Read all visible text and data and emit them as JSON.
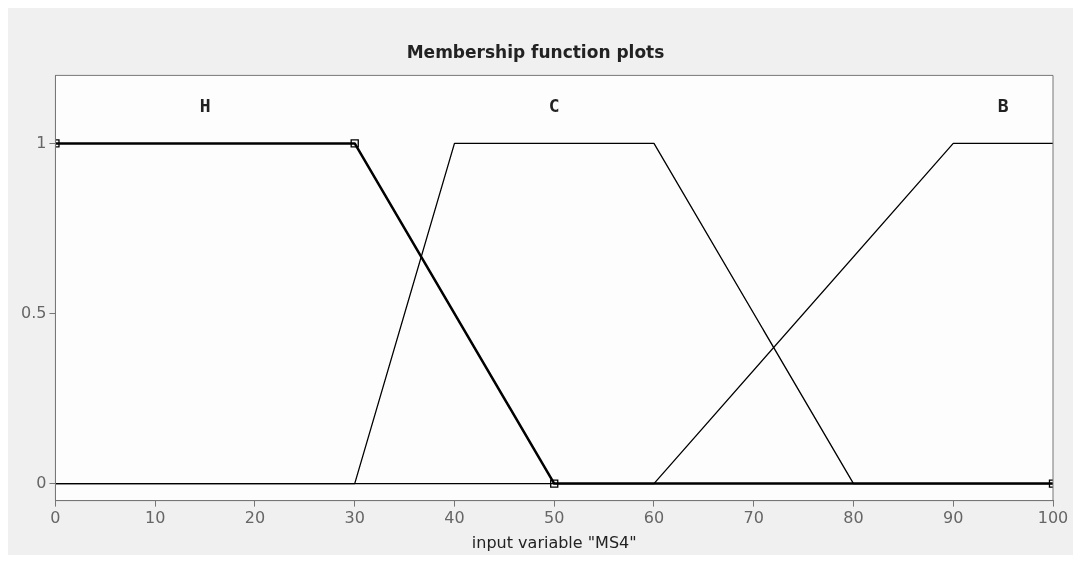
{
  "chart_data": {
    "type": "line",
    "title": "Membership function plots",
    "xlabel": "input variable \"MS4\"",
    "xlim": [
      0,
      100
    ],
    "xticks": [
      0,
      10,
      20,
      30,
      40,
      50,
      60,
      70,
      80,
      90,
      100
    ],
    "ylim": [
      -0.05,
      1.2
    ],
    "yticks": [
      0,
      0.5,
      1
    ],
    "grid": false,
    "legend": false,
    "line_style": "solid",
    "series": [
      {
        "color": "#000000",
        "x": [
          0,
          30,
          50,
          100
        ],
        "values": [
          1,
          1,
          0,
          0
        ],
        "marker": "square"
      },
      {
        "color": "#000000",
        "x": [
          0,
          30,
          40,
          60,
          80,
          100
        ],
        "values": [
          0,
          0,
          1,
          1,
          0,
          0
        ],
        "marker": "none"
      },
      {
        "color": "#000000",
        "x": [
          0,
          60,
          90,
          100
        ],
        "values": [
          0,
          0,
          1,
          1
        ],
        "marker": "none"
      }
    ],
    "annotations": [
      "H",
      "C",
      "B"
    ]
  }
}
